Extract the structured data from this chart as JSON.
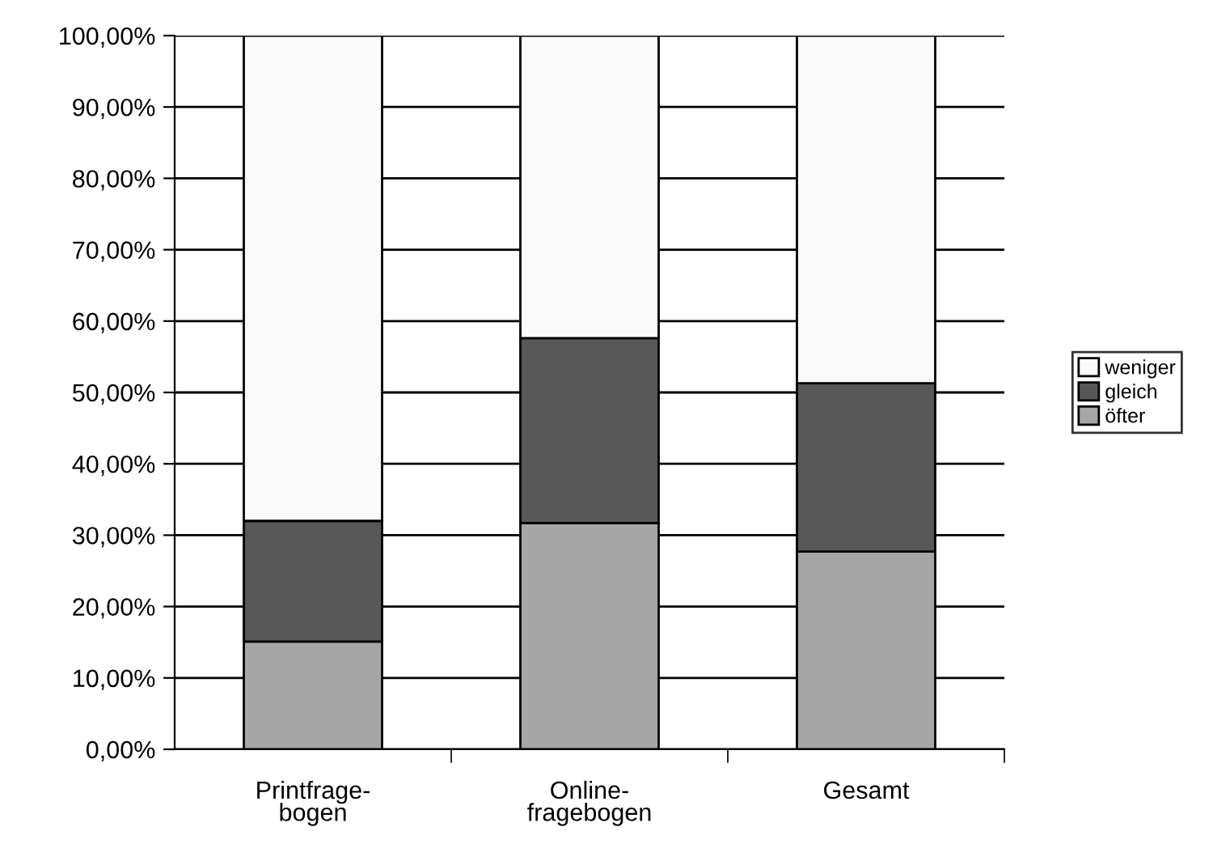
{
  "chart_data": {
    "type": "bar",
    "stacked": true,
    "categories": [
      "Printfrage-\nbogen",
      "Online-\nfragebogen",
      "Gesamt"
    ],
    "series": [
      {
        "name": "öfter",
        "color": "#a6a6a6",
        "values": [
          15.1,
          31.7,
          27.7
        ]
      },
      {
        "name": "gleich",
        "color": "#575757",
        "values": [
          16.9,
          25.9,
          23.6
        ]
      },
      {
        "name": "weniger",
        "color": "#fafafa",
        "values": [
          68.0,
          42.4,
          48.7
        ]
      }
    ],
    "ylim": [
      0,
      100
    ],
    "yticks": [
      {
        "value": 0,
        "label": "0,00%"
      },
      {
        "value": 10,
        "label": "10,00%"
      },
      {
        "value": 20,
        "label": "20,00%"
      },
      {
        "value": 30,
        "label": "30,00%"
      },
      {
        "value": 40,
        "label": "40,00%"
      },
      {
        "value": 50,
        "label": "50,00%"
      },
      {
        "value": 60,
        "label": "60,00%"
      },
      {
        "value": 70,
        "label": "70,00%"
      },
      {
        "value": 80,
        "label": "80,00%"
      },
      {
        "value": 90,
        "label": "90,00%"
      },
      {
        "value": 100,
        "label": "100,00%"
      }
    ],
    "grid": "y",
    "legend": "right"
  }
}
